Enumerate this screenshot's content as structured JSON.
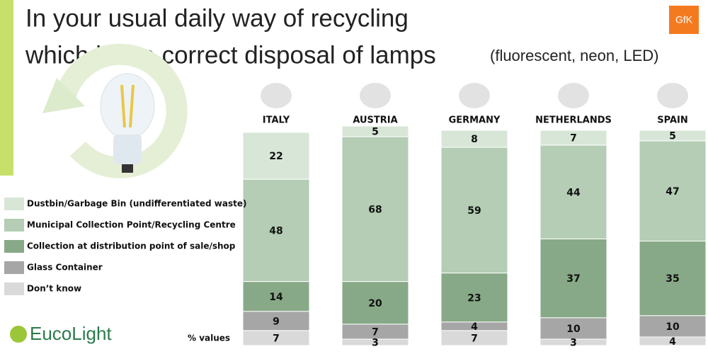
{
  "chart_data": {
    "type": "stacked-bar",
    "title_lines": [
      "In your usual daily way of recycling",
      "which is the correct disposal of lamps"
    ],
    "subtitle": "(fluorescent, neon, LED)",
    "note": "% values",
    "categories": [
      "ITALY",
      "AUSTRIA",
      "GERMANY",
      "NETHERLANDS",
      "SPAIN"
    ],
    "series": [
      {
        "name": "Dustbin/Garbage Bin (undifferentiated waste)",
        "color": "#d8e6d8",
        "values": [
          22,
          5,
          8,
          7,
          5
        ]
      },
      {
        "name": "Municipal Collection Point/Recycling Centre",
        "color": "#b4cdb4",
        "values": [
          48,
          68,
          59,
          44,
          47
        ]
      },
      {
        "name": "Collection at distribution point of sale/shop",
        "color": "#87a987",
        "values": [
          14,
          20,
          23,
          37,
          35
        ]
      },
      {
        "name": "Glass Container",
        "color": "#a6a6a6",
        "values": [
          9,
          7,
          4,
          10,
          10
        ]
      },
      {
        "name": "Don’t know",
        "color": "#d9d9d9",
        "values": [
          7,
          3,
          7,
          3,
          4
        ]
      }
    ]
  },
  "logos": {
    "gfk": "GfK",
    "eucolight": "EucoLight"
  }
}
